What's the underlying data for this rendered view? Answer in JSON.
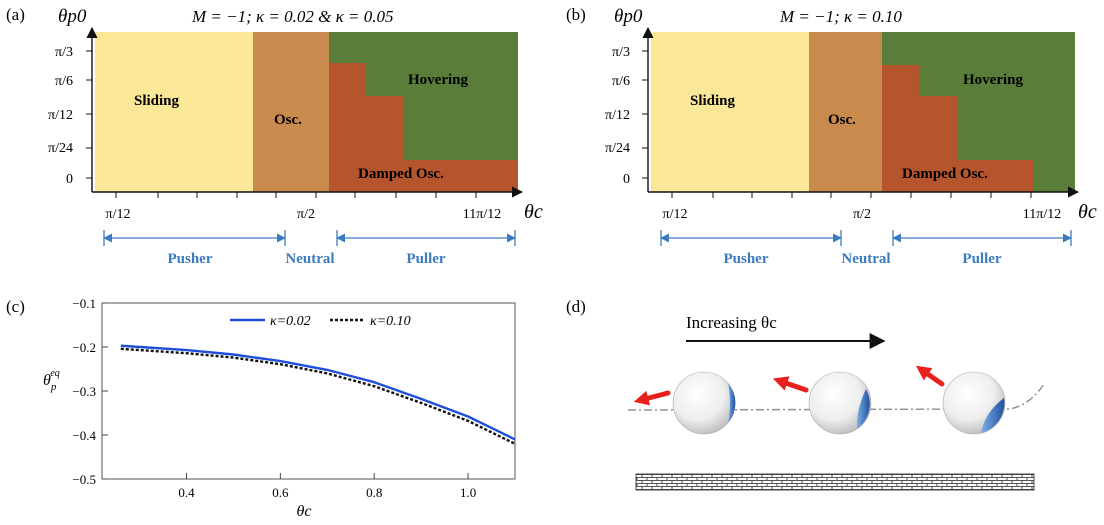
{
  "panel_a": {
    "tag": "(a)",
    "title": "M = −1; κ = 0.02 & κ = 0.05",
    "y_axis_label": "θp0",
    "x_axis_label": "θc",
    "y_ticks": [
      "π/3",
      "π/6",
      "π/12",
      "π/24",
      "0"
    ],
    "x_ticks": [
      "π/12",
      "π/2",
      "11π/12"
    ],
    "regions": {
      "sliding": "Sliding",
      "osc": "Osc.",
      "hovering": "Hovering",
      "damped": "Damped Osc."
    },
    "colors": {
      "sliding": "#fbe798",
      "osc": "#c88a4d",
      "damped": "#b5552e",
      "hovering": "#5a7e3a"
    }
  },
  "panel_b": {
    "tag": "(b)",
    "title": "M = −1; κ = 0.10",
    "y_axis_label": "θp0",
    "x_axis_label": "θc",
    "y_ticks": [
      "π/3",
      "π/6",
      "π/12",
      "π/24",
      "0"
    ],
    "x_ticks": [
      "π/12",
      "π/2",
      "11π/12"
    ],
    "regions": {
      "sliding": "Sliding",
      "osc": "Osc.",
      "hovering": "Hovering",
      "damped": "Damped Osc."
    }
  },
  "swimmer_labels": {
    "pusher": "Pusher",
    "neutral": "Neutral",
    "puller": "Puller",
    "color": "#3b7bbf"
  },
  "panel_c": {
    "tag": "(c)"
  },
  "panel_d": {
    "tag": "(d)",
    "arrow_label": "Increasing θc"
  },
  "chart_data": {
    "type": "line",
    "xlabel": "θc",
    "ylabel": "θp eq",
    "xlim": [
      0.22,
      1.1
    ],
    "ylim": [
      -0.5,
      -0.1
    ],
    "x_ticks": [
      "0.4",
      "0.6",
      "0.8",
      "1.0"
    ],
    "y_ticks": [
      "−0.1",
      "−0.2",
      "−0.3",
      "−0.4",
      "−0.5"
    ],
    "legend_position": "top",
    "series": [
      {
        "name": "κ=0.02",
        "color": "#1f4fd8",
        "style": "solid",
        "x": [
          0.26,
          0.4,
          0.5,
          0.6,
          0.7,
          0.8,
          0.9,
          1.0,
          1.1
        ],
        "y": [
          -0.197,
          -0.207,
          -0.217,
          -0.232,
          -0.252,
          -0.28,
          -0.318,
          -0.358,
          -0.41
        ]
      },
      {
        "name": "κ=0.10",
        "color": "#111111",
        "style": "dotted",
        "x": [
          0.26,
          0.4,
          0.5,
          0.6,
          0.7,
          0.8,
          0.9,
          1.0,
          1.1
        ],
        "y": [
          -0.204,
          -0.214,
          -0.224,
          -0.239,
          -0.26,
          -0.289,
          -0.327,
          -0.368,
          -0.42
        ]
      }
    ]
  }
}
